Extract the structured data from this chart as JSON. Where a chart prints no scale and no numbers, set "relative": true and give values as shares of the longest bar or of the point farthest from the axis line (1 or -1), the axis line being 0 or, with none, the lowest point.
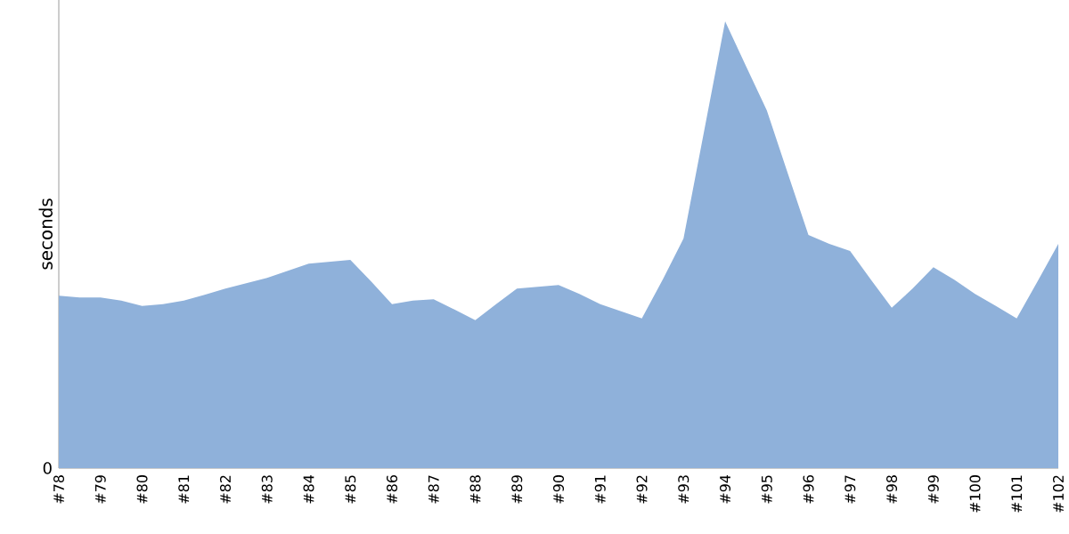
{
  "chart_data": {
    "type": "area",
    "ylabel": "seconds",
    "relative": true,
    "color": "#8fb1da",
    "annotations": [
      "0"
    ],
    "categories": [
      "#78",
      null,
      "#79",
      null,
      "#80",
      null,
      "#81",
      null,
      "#82",
      null,
      "#83",
      null,
      "#84",
      null,
      "#85",
      null,
      "#86",
      null,
      "#87",
      null,
      "#88",
      null,
      "#89",
      null,
      "#90",
      null,
      "#91",
      null,
      "#92",
      null,
      "#93",
      null,
      "#94",
      null,
      "#95",
      null,
      "#96",
      null,
      "#97",
      null,
      "#98",
      null,
      "#99",
      null,
      "#100",
      null,
      "#101",
      null,
      "#102"
    ],
    "values": [
      0.386,
      0.382,
      0.382,
      0.375,
      0.363,
      0.367,
      0.375,
      0.388,
      0.402,
      0.414,
      0.426,
      0.442,
      0.458,
      0.462,
      0.466,
      0.418,
      0.367,
      0.375,
      0.378,
      0.355,
      0.331,
      0.367,
      0.402,
      0.406,
      0.41,
      0.39,
      0.367,
      0.351,
      0.335,
      0.422,
      0.514,
      0.757,
      1,
      0.9,
      0.801,
      0.661,
      0.522,
      0.502,
      0.486,
      0.422,
      0.359,
      0.402,
      0.45,
      0.422,
      0.39,
      0.363,
      0.335,
      0.418,
      0.502
    ]
  }
}
